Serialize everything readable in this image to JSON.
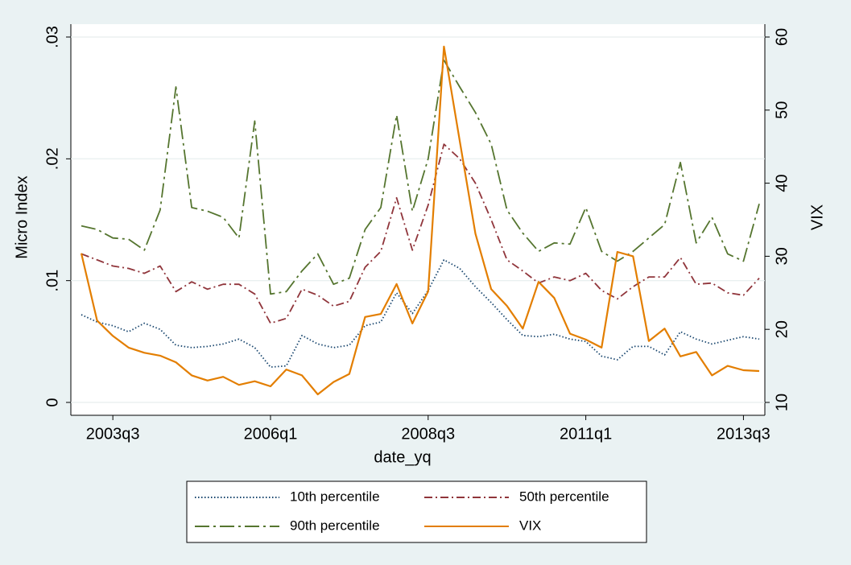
{
  "chart_data": {
    "type": "line",
    "x": [
      "2003q1",
      "2003q2",
      "2003q3",
      "2003q4",
      "2004q1",
      "2004q2",
      "2004q3",
      "2004q4",
      "2005q1",
      "2005q2",
      "2005q3",
      "2005q4",
      "2006q1",
      "2006q2",
      "2006q3",
      "2006q4",
      "2007q1",
      "2007q2",
      "2007q3",
      "2007q4",
      "2008q1",
      "2008q2",
      "2008q3",
      "2008q4",
      "2009q1",
      "2009q2",
      "2009q3",
      "2009q4",
      "2010q1",
      "2010q2",
      "2010q3",
      "2010q4",
      "2011q1",
      "2011q2",
      "2011q3",
      "2011q4",
      "2012q1",
      "2012q2",
      "2012q3",
      "2012q4",
      "2013q1",
      "2013q2",
      "2013q3",
      "2013q4"
    ],
    "xticks": [
      "2003q3",
      "2006q1",
      "2008q3",
      "2011q1",
      "2013q3"
    ],
    "xlabel": "date_yq",
    "ylabel": "Micro Index",
    "y2label": "VIX",
    "ylim": [
      0,
      0.03
    ],
    "yticks": [
      0,
      {
        "value": 0.01,
        "label": ".01"
      },
      {
        "value": 0.02,
        "label": ".02"
      },
      {
        "value": 0.03,
        "label": ".03"
      }
    ],
    "y2lim": [
      10,
      60
    ],
    "y2ticks": [
      10,
      20,
      30,
      40,
      50,
      60
    ],
    "grid": true,
    "legend": "bottom",
    "series": [
      {
        "name": "10th percentile",
        "color": "#1a476f",
        "dash": "dotted",
        "values": [
          0.0072,
          0.0066,
          0.0063,
          0.0058,
          0.0065,
          0.006,
          0.0047,
          0.0045,
          0.0046,
          0.0048,
          0.0052,
          0.0045,
          0.0029,
          0.003,
          0.0055,
          0.0048,
          0.0045,
          0.0047,
          0.0063,
          0.0066,
          0.009,
          0.0073,
          0.0092,
          0.0117,
          0.011,
          0.0095,
          0.0082,
          0.0068,
          0.0055,
          0.0054,
          0.0056,
          0.0052,
          0.005,
          0.0038,
          0.0035,
          0.0046,
          0.0046,
          0.0039,
          0.0058,
          0.0052,
          0.0048,
          0.0051,
          0.0054,
          0.0052
        ]
      },
      {
        "name": "50th percentile",
        "color": "#90353b",
        "dash": "dashdot",
        "values": [
          0.0122,
          0.0117,
          0.0112,
          0.011,
          0.0106,
          0.0112,
          0.0091,
          0.0099,
          0.0093,
          0.0097,
          0.0097,
          0.0089,
          0.0065,
          0.0069,
          0.0093,
          0.0088,
          0.0079,
          0.0083,
          0.0111,
          0.0124,
          0.0168,
          0.0125,
          0.0162,
          0.0212,
          0.02,
          0.018,
          0.015,
          0.0117,
          0.0108,
          0.0098,
          0.0103,
          0.01,
          0.0106,
          0.0092,
          0.0085,
          0.0095,
          0.0103,
          0.0103,
          0.0119,
          0.0097,
          0.0098,
          0.009,
          0.0088,
          0.0102
        ]
      },
      {
        "name": "90th percentile",
        "color": "#55752f",
        "dash": "longdashdot",
        "values": [
          0.0145,
          0.0142,
          0.0135,
          0.0134,
          0.0125,
          0.0158,
          0.0259,
          0.016,
          0.0157,
          0.0152,
          0.0135,
          0.0231,
          0.0089,
          0.0091,
          0.0108,
          0.0122,
          0.0097,
          0.0102,
          0.0142,
          0.016,
          0.0236,
          0.0157,
          0.02,
          0.0281,
          0.0259,
          0.0238,
          0.0212,
          0.0158,
          0.0139,
          0.0124,
          0.0131,
          0.013,
          0.016,
          0.0124,
          0.0116,
          0.0124,
          0.0135,
          0.0146,
          0.0197,
          0.0131,
          0.0152,
          0.0122,
          0.0116,
          0.0163
        ]
      },
      {
        "name": "VIX",
        "color": "#e37e00",
        "dash": "solid",
        "axis": "y2",
        "values": [
          30.4,
          21.2,
          19.1,
          17.5,
          16.8,
          16.4,
          15.5,
          13.7,
          13.0,
          13.5,
          12.4,
          12.9,
          12.2,
          14.5,
          13.7,
          11.1,
          12.8,
          13.9,
          21.7,
          22.1,
          26.2,
          20.8,
          25.2,
          58.7,
          45.8,
          33.1,
          25.5,
          23.2,
          20.1,
          26.5,
          24.3,
          19.4,
          18.6,
          17.5,
          30.6,
          30.0,
          18.4,
          20.1,
          16.3,
          16.9,
          13.7,
          15.0,
          14.4,
          14.3
        ]
      }
    ]
  }
}
